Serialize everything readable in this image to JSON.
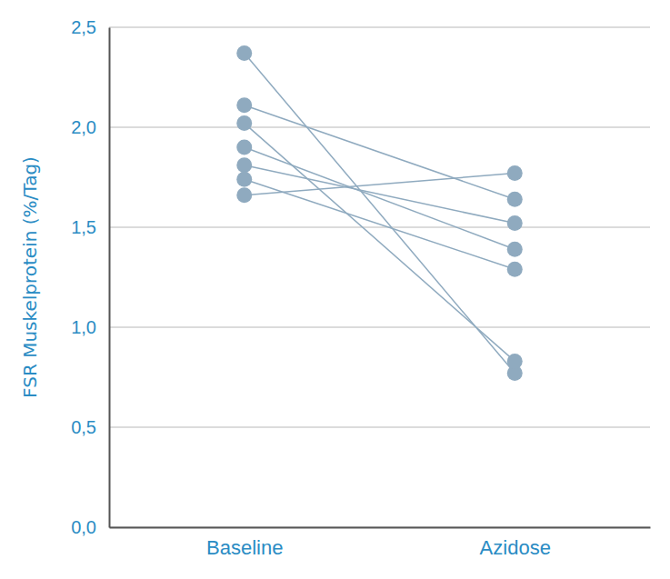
{
  "chart_data": {
    "type": "line",
    "y_label": "FSR Muskelprotein (%/Tag)",
    "categories": [
      "Baseline",
      "Azidose"
    ],
    "series": [
      {
        "values": [
          2.37,
          0.77
        ]
      },
      {
        "values": [
          2.11,
          1.64
        ]
      },
      {
        "values": [
          2.02,
          0.83
        ]
      },
      {
        "values": [
          1.9,
          1.39
        ]
      },
      {
        "values": [
          1.81,
          1.52
        ]
      },
      {
        "values": [
          1.74,
          1.29
        ]
      },
      {
        "values": [
          1.66,
          1.77
        ]
      }
    ],
    "color": "#8faabf",
    "marker": "circle",
    "ylim": [
      0,
      2.5
    ],
    "yticks": [
      {
        "value": 0,
        "label": "0,0"
      },
      {
        "value": 0.5,
        "label": "0,5"
      },
      {
        "value": 1,
        "label": "1,0"
      },
      {
        "value": 1.5,
        "label": "1,5"
      },
      {
        "value": 2,
        "label": "2,0"
      },
      {
        "value": 2.5,
        "label": "2,5"
      }
    ],
    "grid": true
  }
}
